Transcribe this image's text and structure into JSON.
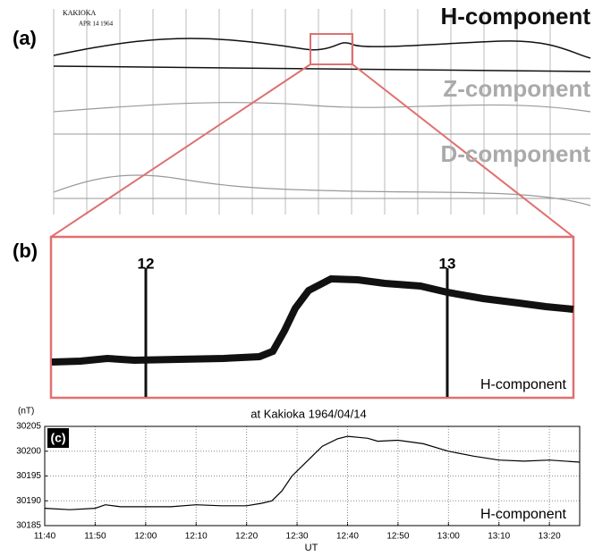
{
  "panel_a": {
    "label": "(a)",
    "station": "KAKIOKA",
    "date": "APR 14 1964",
    "components": [
      "H-component",
      "Z-component",
      "D-component"
    ]
  },
  "panel_b": {
    "label": "(b)",
    "hours": [
      "12",
      "13"
    ],
    "component": "H-component"
  },
  "chart_data": {
    "type": "line",
    "panel_label": "(c)",
    "title": "at Kakioka 1964/04/14",
    "y_unit": "(nT)",
    "x_label": "UT",
    "annotation": "H-component",
    "x": [
      "11:40",
      "11:45",
      "11:50",
      "11:52",
      "11:55",
      "12:00",
      "12:05",
      "12:10",
      "12:15",
      "12:20",
      "12:23",
      "12:25",
      "12:27",
      "12:29",
      "12:31",
      "12:33",
      "12:35",
      "12:38",
      "12:40",
      "12:42",
      "12:44",
      "12:46",
      "12:50",
      "12:55",
      "13:00",
      "13:05",
      "13:10",
      "13:15",
      "13:20",
      "13:26"
    ],
    "series": [
      {
        "name": "H-component",
        "color": "#000000",
        "values": [
          30188.5,
          30188.2,
          30188.5,
          30189.2,
          30188.8,
          30188.8,
          30188.8,
          30189.2,
          30189,
          30189,
          30189.5,
          30190,
          30192,
          30195,
          30197,
          30199,
          30201,
          30202.5,
          30203,
          30202.8,
          30202.6,
          30202,
          30202.2,
          30201.5,
          30200,
          30199,
          30198.2,
          30198,
          30198.2,
          30197.8
        ]
      }
    ],
    "xlim": [
      "11:40",
      "13:26"
    ],
    "xticks": [
      "11:40",
      "11:50",
      "12:00",
      "12:10",
      "12:20",
      "12:30",
      "12:40",
      "12:50",
      "13:00",
      "13:10",
      "13:20"
    ],
    "ylim": [
      30185,
      30205
    ],
    "yticks": [
      30185,
      30190,
      30195,
      30200,
      30205
    ],
    "grid": true
  }
}
